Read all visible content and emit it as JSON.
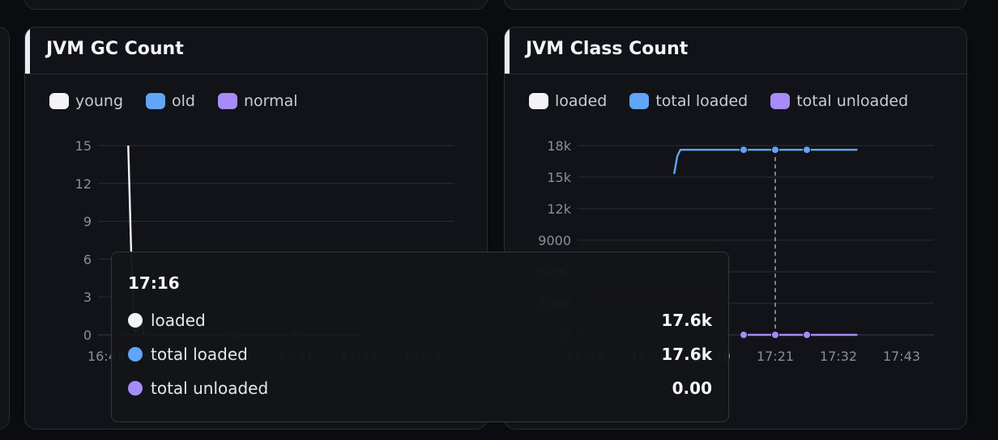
{
  "colors": {
    "white": "#f2f4f7",
    "blue": "#60a5fa",
    "purple": "#a78bfa",
    "grid": "#2a2d35"
  },
  "chart_data": [
    {
      "type": "line",
      "title": "JVM GC Count",
      "legend": [
        {
          "name": "young",
          "color": "#f2f4f7"
        },
        {
          "name": "old",
          "color": "#60a5fa"
        },
        {
          "name": "normal",
          "color": "#a78bfa"
        }
      ],
      "legend_position": "top-left",
      "grid": true,
      "ylim": [
        0,
        15
      ],
      "yticks": [
        "15",
        "12",
        "9",
        "6",
        "3",
        "0"
      ],
      "xticks": [
        "16:48",
        "16:59",
        "17:10",
        "17:21",
        "17:32",
        "17:43"
      ],
      "series": [
        {
          "name": "young",
          "color": "#f2f4f7",
          "points": [
            [
              0.35,
              15
            ],
            [
              0.4,
              6
            ],
            [
              0.45,
              0.2
            ],
            [
              0.5,
              0.5
            ],
            [
              0.55,
              1.2
            ],
            [
              0.6,
              0
            ],
            [
              1.0,
              0
            ],
            [
              2.0,
              0
            ],
            [
              3.0,
              0
            ]
          ]
        },
        {
          "name": "normal",
          "color": "#a78bfa",
          "points": [
            [
              0.3,
              0
            ],
            [
              2.0,
              0
            ],
            [
              3.0,
              0
            ],
            [
              4.0,
              0
            ]
          ],
          "markers": [
            2.0,
            3.0
          ]
        }
      ]
    },
    {
      "type": "line",
      "title": "JVM Class Count",
      "legend": [
        {
          "name": "loaded",
          "color": "#f2f4f7"
        },
        {
          "name": "total loaded",
          "color": "#60a5fa"
        },
        {
          "name": "total unloaded",
          "color": "#a78bfa"
        }
      ],
      "legend_position": "top-left",
      "grid": true,
      "ylim": [
        0,
        18000
      ],
      "yticks": [
        "18k",
        "15k",
        "12k",
        "9000",
        "6000",
        "3000",
        "0"
      ],
      "xticks": [
        "16:48",
        "16:59",
        "17:10",
        "17:21",
        "17:32",
        "17:43"
      ],
      "series": [
        {
          "name": "total loaded",
          "color": "#60a5fa",
          "points": [
            [
              1.4,
              15300
            ],
            [
              1.45,
              17000
            ],
            [
              1.5,
              17600
            ],
            [
              2.5,
              17600
            ],
            [
              3.0,
              17600
            ],
            [
              3.5,
              17600
            ],
            [
              4.3,
              17600
            ]
          ],
          "markers": [
            2.5,
            3.0,
            3.5
          ]
        },
        {
          "name": "total unloaded",
          "color": "#a78bfa",
          "points": [
            [
              2.5,
              0
            ],
            [
              3.0,
              0
            ],
            [
              3.5,
              0
            ],
            [
              4.3,
              0
            ]
          ],
          "markers": [
            2.5,
            3.0,
            3.5
          ]
        }
      ],
      "crosshair_x": 3.0
    }
  ],
  "tooltip": {
    "time": "17:16",
    "rows": [
      {
        "label": "loaded",
        "value": "17.6k",
        "color": "#f2f4f7"
      },
      {
        "label": "total loaded",
        "value": "17.6k",
        "color": "#60a5fa"
      },
      {
        "label": "total unloaded",
        "value": "0.00",
        "color": "#a78bfa"
      }
    ]
  }
}
